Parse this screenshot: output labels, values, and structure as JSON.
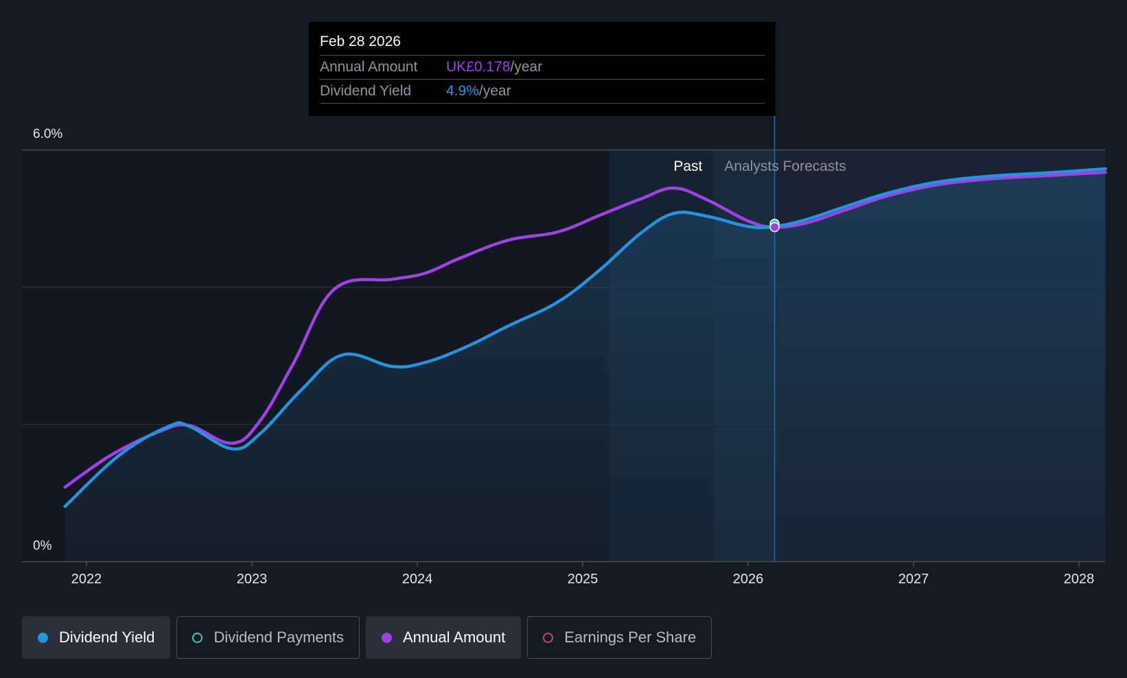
{
  "chart_data": {
    "type": "area",
    "title": "",
    "xlabel": "",
    "ylabel": "",
    "y_tick_labels": [
      "6.0%",
      "0%"
    ],
    "ylim": [
      0,
      6.0
    ],
    "xlim": [
      2021.87,
      2028.16
    ],
    "x_ticks": [
      2022,
      2023,
      2024,
      2025,
      2026,
      2027,
      2028
    ],
    "past_label": "Past",
    "forecast_label": "Analysts Forecasts",
    "past_start_x": 2025.16,
    "forecast_start_x": 2025.79,
    "cursor_x": 2026.16,
    "series": [
      {
        "name": "Dividend Yield",
        "color": "#2394df",
        "fill": true,
        "points": [
          [
            2021.87,
            0.8
          ],
          [
            2022.2,
            1.55
          ],
          [
            2022.5,
            1.97
          ],
          [
            2022.62,
            1.97
          ],
          [
            2022.88,
            1.64
          ],
          [
            2023.05,
            1.86
          ],
          [
            2023.3,
            2.5
          ],
          [
            2023.55,
            3.01
          ],
          [
            2023.85,
            2.84
          ],
          [
            2024.05,
            2.9
          ],
          [
            2024.3,
            3.13
          ],
          [
            2024.55,
            3.43
          ],
          [
            2024.85,
            3.78
          ],
          [
            2025.1,
            4.24
          ],
          [
            2025.35,
            4.78
          ],
          [
            2025.55,
            5.07
          ],
          [
            2025.75,
            5.03
          ],
          [
            2026.0,
            4.88
          ],
          [
            2026.16,
            4.88
          ],
          [
            2026.35,
            4.98
          ],
          [
            2026.6,
            5.18
          ],
          [
            2026.85,
            5.37
          ],
          [
            2027.15,
            5.53
          ],
          [
            2027.5,
            5.62
          ],
          [
            2027.8,
            5.66
          ],
          [
            2028.16,
            5.72
          ]
        ]
      },
      {
        "name": "Annual Amount",
        "color": "#a041e8",
        "fill": false,
        "points": [
          [
            2021.87,
            1.08
          ],
          [
            2022.15,
            1.55
          ],
          [
            2022.45,
            1.9
          ],
          [
            2022.62,
            1.98
          ],
          [
            2022.88,
            1.72
          ],
          [
            2023.05,
            2.05
          ],
          [
            2023.25,
            2.88
          ],
          [
            2023.5,
            3.97
          ],
          [
            2023.85,
            4.11
          ],
          [
            2024.05,
            4.2
          ],
          [
            2024.25,
            4.41
          ],
          [
            2024.55,
            4.68
          ],
          [
            2024.85,
            4.8
          ],
          [
            2025.1,
            5.04
          ],
          [
            2025.35,
            5.28
          ],
          [
            2025.55,
            5.44
          ],
          [
            2025.75,
            5.27
          ],
          [
            2026.0,
            4.96
          ],
          [
            2026.16,
            4.87
          ],
          [
            2026.35,
            4.93
          ],
          [
            2026.6,
            5.13
          ],
          [
            2026.85,
            5.33
          ],
          [
            2027.15,
            5.49
          ],
          [
            2027.5,
            5.58
          ],
          [
            2027.8,
            5.62
          ],
          [
            2028.16,
            5.67
          ]
        ]
      }
    ],
    "markers": [
      {
        "series": "Dividend Payments",
        "x": 2026.16,
        "y": 4.92,
        "color": "#4ec2b4"
      },
      {
        "series": "Annual Amount",
        "x": 2026.16,
        "y": 4.87,
        "color": "#a041e8"
      }
    ]
  },
  "tooltip": {
    "date": "Feb 28 2026",
    "rows": [
      {
        "label": "Annual Amount",
        "value": "UK£0.178",
        "unit": "/year",
        "color": "#a041e8"
      },
      {
        "label": "Dividend Yield",
        "value": "4.9%",
        "unit": "/year",
        "color": "#2394df"
      }
    ]
  },
  "legend": [
    {
      "label": "Dividend Yield",
      "color": "#2394df",
      "active": true,
      "marker": "filled"
    },
    {
      "label": "Dividend Payments",
      "color": "#4ec2b4",
      "active": false,
      "marker": "hollow"
    },
    {
      "label": "Annual Amount",
      "color": "#a041e8",
      "active": true,
      "marker": "filled"
    },
    {
      "label": "Earnings Per Share",
      "color": "#c8457a",
      "active": false,
      "marker": "hollow"
    }
  ]
}
